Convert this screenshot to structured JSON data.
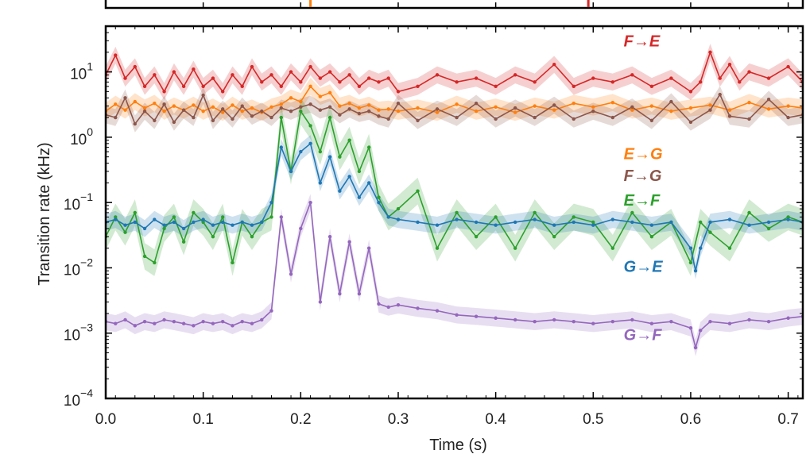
{
  "chart_data": {
    "type": "line",
    "xlabel": "Time (s)",
    "ylabel": "Transition rate (kHz)",
    "xlim": [
      0.0,
      0.715
    ],
    "ylim_log10": [
      -4,
      1.7
    ],
    "y_scale": "log",
    "x_ticks": [
      "0.0",
      "0.1",
      "0.2",
      "0.3",
      "0.4",
      "0.5",
      "0.6",
      "0.7"
    ],
    "y_ticks": [
      {
        "base": "10",
        "exp": "1"
      },
      {
        "base": "10",
        "exp": "0"
      },
      {
        "base": "10",
        "exp": "−1"
      },
      {
        "base": "10",
        "exp": "−2"
      },
      {
        "base": "10",
        "exp": "−3"
      },
      {
        "base": "10",
        "exp": "−4"
      }
    ],
    "grid": false,
    "series": [
      {
        "name": "F→E",
        "color": "#d62728",
        "label_pos": [
          0.515,
          30
        ],
        "x": [
          0,
          0.01,
          0.02,
          0.03,
          0.04,
          0.05,
          0.06,
          0.07,
          0.08,
          0.09,
          0.1,
          0.11,
          0.12,
          0.13,
          0.14,
          0.15,
          0.16,
          0.17,
          0.18,
          0.19,
          0.2,
          0.21,
          0.22,
          0.23,
          0.24,
          0.25,
          0.26,
          0.27,
          0.28,
          0.29,
          0.3,
          0.32,
          0.34,
          0.36,
          0.38,
          0.4,
          0.42,
          0.44,
          0.46,
          0.48,
          0.5,
          0.52,
          0.54,
          0.56,
          0.58,
          0.6,
          0.61,
          0.62,
          0.63,
          0.64,
          0.65,
          0.66,
          0.68,
          0.7,
          0.715
        ],
        "y": [
          9,
          18,
          8,
          12,
          6,
          9,
          5,
          10,
          6,
          11,
          6,
          8,
          5,
          9,
          6,
          12,
          7,
          9,
          6,
          10,
          7,
          12,
          8,
          10,
          7,
          9,
          6,
          8,
          7,
          8,
          5,
          6,
          9,
          7,
          8,
          6,
          9,
          7,
          13,
          6,
          8,
          7,
          9,
          6,
          8,
          5,
          7,
          20,
          8,
          13,
          7,
          10,
          8,
          12,
          7
        ]
      },
      {
        "name": "E→G",
        "color": "#ff7f0e",
        "label_pos": [
          0.515,
          0.56
        ],
        "x": [
          0,
          0.01,
          0.02,
          0.03,
          0.04,
          0.05,
          0.06,
          0.07,
          0.08,
          0.09,
          0.1,
          0.11,
          0.12,
          0.13,
          0.14,
          0.15,
          0.16,
          0.17,
          0.18,
          0.19,
          0.2,
          0.21,
          0.22,
          0.23,
          0.24,
          0.25,
          0.26,
          0.27,
          0.28,
          0.29,
          0.3,
          0.32,
          0.34,
          0.36,
          0.38,
          0.4,
          0.42,
          0.44,
          0.46,
          0.48,
          0.5,
          0.52,
          0.54,
          0.56,
          0.58,
          0.6,
          0.62,
          0.64,
          0.66,
          0.68,
          0.7,
          0.715
        ],
        "y": [
          2.5,
          3.2,
          2.6,
          3.5,
          2.8,
          3.3,
          2.5,
          3.0,
          2.6,
          3.1,
          2.5,
          2.9,
          2.4,
          3.1,
          2.5,
          2.8,
          2.4,
          2.9,
          3.2,
          4.0,
          3.5,
          6.0,
          4.2,
          4.8,
          3.0,
          3.3,
          2.8,
          3.1,
          2.6,
          2.7,
          2.5,
          2.8,
          2.4,
          3.2,
          2.5,
          2.9,
          2.4,
          3.0,
          2.6,
          3.3,
          2.9,
          3.4,
          2.6,
          3.0,
          2.5,
          2.8,
          3.1,
          2.6,
          3.4,
          2.7,
          3.0,
          2.8
        ]
      },
      {
        "name": "F→G",
        "color": "#8c564b",
        "label_pos": [
          0.515,
          0.26
        ],
        "x": [
          0,
          0.01,
          0.02,
          0.03,
          0.04,
          0.05,
          0.06,
          0.07,
          0.08,
          0.09,
          0.1,
          0.11,
          0.12,
          0.13,
          0.14,
          0.15,
          0.16,
          0.17,
          0.18,
          0.19,
          0.2,
          0.21,
          0.22,
          0.23,
          0.24,
          0.25,
          0.26,
          0.27,
          0.28,
          0.29,
          0.3,
          0.32,
          0.34,
          0.36,
          0.38,
          0.4,
          0.42,
          0.44,
          0.46,
          0.48,
          0.5,
          0.52,
          0.54,
          0.56,
          0.58,
          0.6,
          0.62,
          0.63,
          0.64,
          0.66,
          0.68,
          0.7,
          0.715
        ],
        "y": [
          2.2,
          2.0,
          4.0,
          1.6,
          2.5,
          1.8,
          3.2,
          1.7,
          2.6,
          2.0,
          4.4,
          1.8,
          2.7,
          1.9,
          3.0,
          2.1,
          2.5,
          2.0,
          2.8,
          2.5,
          2.9,
          3.2,
          2.6,
          2.9,
          2.2,
          2.7,
          2.3,
          2.5,
          2.1,
          1.9,
          3.3,
          1.8,
          2.7,
          2.0,
          3.3,
          1.9,
          2.8,
          2.0,
          3.1,
          1.9,
          2.5,
          2.0,
          2.9,
          1.8,
          3.5,
          1.7,
          2.6,
          4.5,
          2.1,
          1.9,
          3.8,
          2.0,
          2.2
        ]
      },
      {
        "name": "E→F",
        "color": "#2ca02c",
        "label_pos": [
          0.515,
          0.11
        ],
        "x": [
          0,
          0.01,
          0.02,
          0.03,
          0.04,
          0.05,
          0.06,
          0.07,
          0.08,
          0.09,
          0.1,
          0.11,
          0.12,
          0.13,
          0.14,
          0.15,
          0.16,
          0.17,
          0.18,
          0.19,
          0.2,
          0.21,
          0.22,
          0.23,
          0.24,
          0.25,
          0.26,
          0.27,
          0.28,
          0.29,
          0.3,
          0.32,
          0.34,
          0.36,
          0.38,
          0.4,
          0.42,
          0.44,
          0.46,
          0.48,
          0.5,
          0.52,
          0.54,
          0.56,
          0.58,
          0.6,
          0.61,
          0.62,
          0.64,
          0.66,
          0.68,
          0.7,
          0.715
        ],
        "y": [
          0.03,
          0.06,
          0.035,
          0.07,
          0.015,
          0.012,
          0.04,
          0.06,
          0.025,
          0.07,
          0.05,
          0.03,
          0.06,
          0.012,
          0.05,
          0.03,
          0.05,
          0.06,
          2.0,
          0.3,
          2.5,
          1.5,
          0.6,
          2.0,
          0.5,
          0.9,
          0.3,
          0.7,
          0.12,
          0.06,
          0.08,
          0.15,
          0.02,
          0.07,
          0.03,
          0.06,
          0.02,
          0.07,
          0.03,
          0.06,
          0.05,
          0.02,
          0.07,
          0.03,
          0.05,
          0.012,
          0.05,
          0.035,
          0.02,
          0.07,
          0.04,
          0.06,
          0.05
        ]
      },
      {
        "name": "G→E",
        "color": "#1f77b4",
        "label_pos": [
          0.515,
          0.0105
        ],
        "x": [
          0,
          0.01,
          0.02,
          0.03,
          0.04,
          0.05,
          0.06,
          0.07,
          0.08,
          0.09,
          0.1,
          0.11,
          0.12,
          0.13,
          0.14,
          0.15,
          0.16,
          0.17,
          0.18,
          0.19,
          0.2,
          0.21,
          0.22,
          0.23,
          0.24,
          0.25,
          0.26,
          0.27,
          0.28,
          0.29,
          0.3,
          0.32,
          0.34,
          0.36,
          0.38,
          0.4,
          0.42,
          0.44,
          0.46,
          0.48,
          0.5,
          0.52,
          0.54,
          0.56,
          0.58,
          0.6,
          0.605,
          0.61,
          0.62,
          0.64,
          0.66,
          0.68,
          0.7,
          0.715
        ],
        "y": [
          0.05,
          0.055,
          0.045,
          0.05,
          0.04,
          0.055,
          0.045,
          0.05,
          0.04,
          0.05,
          0.055,
          0.045,
          0.05,
          0.045,
          0.05,
          0.045,
          0.05,
          0.1,
          0.7,
          0.3,
          0.6,
          0.8,
          0.2,
          0.5,
          0.15,
          0.25,
          0.12,
          0.2,
          0.1,
          0.06,
          0.055,
          0.05,
          0.045,
          0.055,
          0.05,
          0.045,
          0.05,
          0.055,
          0.045,
          0.05,
          0.045,
          0.055,
          0.05,
          0.045,
          0.05,
          0.02,
          0.009,
          0.02,
          0.05,
          0.055,
          0.045,
          0.05,
          0.055,
          0.05
        ]
      },
      {
        "name": "G→F",
        "color": "#9467bd",
        "label_pos": [
          0.515,
          0.00095
        ],
        "x": [
          0,
          0.01,
          0.02,
          0.03,
          0.04,
          0.05,
          0.06,
          0.07,
          0.08,
          0.09,
          0.1,
          0.11,
          0.12,
          0.13,
          0.14,
          0.15,
          0.16,
          0.17,
          0.18,
          0.19,
          0.2,
          0.21,
          0.22,
          0.23,
          0.24,
          0.25,
          0.26,
          0.27,
          0.28,
          0.29,
          0.3,
          0.32,
          0.34,
          0.36,
          0.38,
          0.4,
          0.42,
          0.44,
          0.46,
          0.48,
          0.5,
          0.52,
          0.54,
          0.56,
          0.58,
          0.6,
          0.605,
          0.61,
          0.62,
          0.64,
          0.66,
          0.68,
          0.7,
          0.715
        ],
        "y": [
          0.0015,
          0.0014,
          0.0016,
          0.0013,
          0.0015,
          0.0014,
          0.0016,
          0.0015,
          0.0014,
          0.0013,
          0.0015,
          0.0014,
          0.0015,
          0.0013,
          0.0015,
          0.0014,
          0.0016,
          0.0022,
          0.06,
          0.008,
          0.04,
          0.1,
          0.003,
          0.03,
          0.004,
          0.025,
          0.004,
          0.02,
          0.0028,
          0.0025,
          0.0027,
          0.0024,
          0.0022,
          0.0019,
          0.0018,
          0.0017,
          0.0016,
          0.0015,
          0.0016,
          0.0015,
          0.0014,
          0.0015,
          0.0016,
          0.0014,
          0.0015,
          0.0012,
          0.0006,
          0.0011,
          0.0015,
          0.0014,
          0.0016,
          0.0015,
          0.0017,
          0.0018
        ]
      }
    ],
    "top_panel_markers": [
      {
        "x": 0.21,
        "color": "#ff7f0e"
      },
      {
        "x": 0.495,
        "color": "#d62728"
      }
    ]
  }
}
